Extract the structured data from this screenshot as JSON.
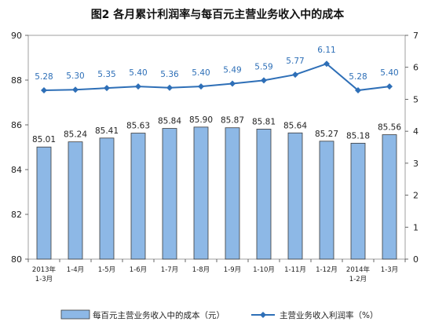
{
  "chart_data": {
    "type": "bar",
    "title": "图2  各月累计利润率与每百元主营业务收入中的成本",
    "categories": [
      "2013年 1-3月",
      "1-4月",
      "1-5月",
      "1-6月",
      "1-7月",
      "1-8月",
      "1-9月",
      "1-10月",
      "1-11月",
      "1-12月",
      "2014年 1-2月",
      "1-3月"
    ],
    "category_lines": [
      [
        "2013年",
        "1-3月"
      ],
      [
        "1-4月"
      ],
      [
        "1-5月"
      ],
      [
        "1-6月"
      ],
      [
        "1-7月"
      ],
      [
        "1-8月"
      ],
      [
        "1-9月"
      ],
      [
        "1-10月"
      ],
      [
        "1-11月"
      ],
      [
        "1-12月"
      ],
      [
        "2014年",
        "1-2月"
      ],
      [
        "1-3月"
      ]
    ],
    "series": [
      {
        "name": "每百元主营业务收入中的成本（元）",
        "type": "bar",
        "axis": "left",
        "color": "#8db8e6",
        "values": [
          85.01,
          85.24,
          85.41,
          85.63,
          85.84,
          85.9,
          85.87,
          85.81,
          85.64,
          85.27,
          85.18,
          85.56
        ],
        "labels": [
          "85.01",
          "85.24",
          "85.41",
          "85.63",
          "85.84",
          "85.90",
          "85.87",
          "85.81",
          "85.64",
          "85.27",
          "85.18",
          "85.56"
        ]
      },
      {
        "name": "主营业务收入利润率（%）",
        "type": "line",
        "axis": "right",
        "color": "#2e6fb7",
        "values": [
          5.28,
          5.3,
          5.35,
          5.4,
          5.36,
          5.4,
          5.49,
          5.59,
          5.77,
          6.11,
          5.28,
          5.4
        ],
        "labels": [
          "5.28",
          "5.30",
          "5.35",
          "5.40",
          "5.36",
          "5.40",
          "5.49",
          "5.59",
          "5.77",
          "6.11",
          "5.28",
          "5.40"
        ]
      }
    ],
    "ylim_left": [
      80,
      90
    ],
    "yticks_left": [
      "80",
      "82",
      "84",
      "86",
      "88",
      "90"
    ],
    "ylim_right": [
      0,
      7
    ],
    "yticks_right": [
      "0",
      "1",
      "2",
      "3",
      "4",
      "5",
      "6",
      "7"
    ],
    "grid": false,
    "legend_position": "bottom"
  }
}
